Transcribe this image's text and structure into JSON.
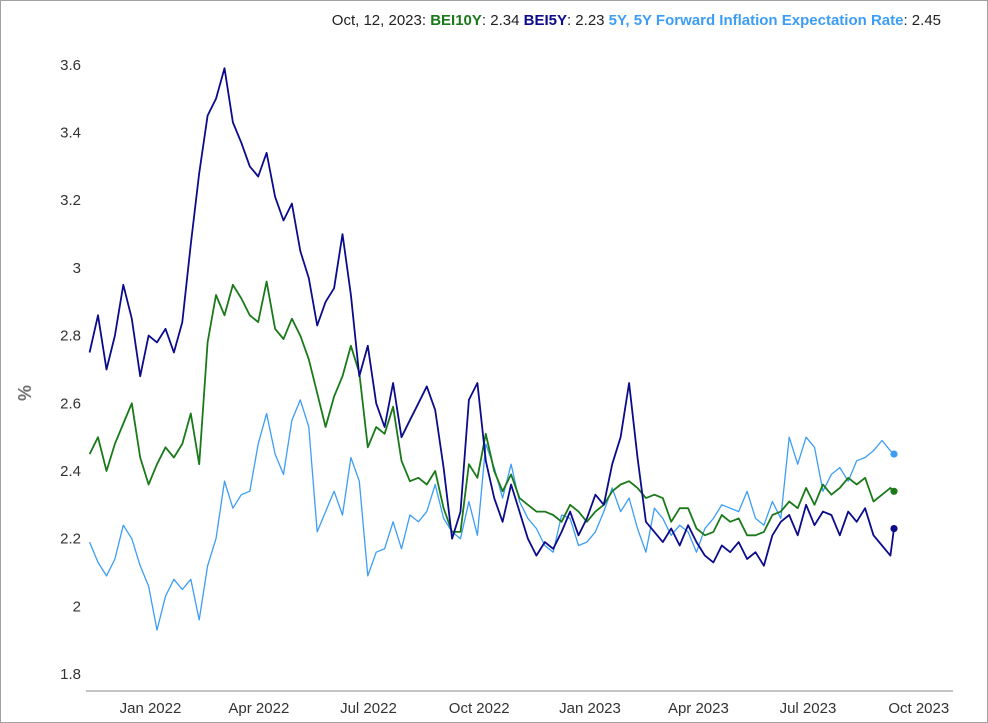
{
  "chart_data": {
    "type": "line",
    "header": {
      "date": "Oct, 12, 2023:",
      "values": [
        {
          "label": "BEI10Y",
          "value": "2.34",
          "color": "#1a7a1a"
        },
        {
          "label": "BEI5Y",
          "value": "2.23",
          "color": "#0b0b8c"
        },
        {
          "label": "5Y, 5Y Forward Inflation Expectation Rate",
          "value": "2.45",
          "color": "#3d9df5"
        }
      ]
    },
    "ylabel": "%",
    "ylim": [
      1.75,
      3.7
    ],
    "yticks": [
      1.8,
      2,
      2.2,
      2.4,
      2.6,
      2.8,
      3,
      3.2,
      3.4,
      3.6
    ],
    "ytick_labels": [
      "1.8",
      "2",
      "2.2",
      "2.4",
      "2.6",
      "2.8",
      "3",
      "3.2",
      "3.4",
      "3.6"
    ],
    "xlim": [
      "2021-12-10",
      "2023-11-30"
    ],
    "xticks": [
      "2022-01-01",
      "2022-04-01",
      "2022-07-01",
      "2022-10-01",
      "2023-01-01",
      "2023-04-01",
      "2023-07-01",
      "2023-10-01"
    ],
    "xtick_labels": [
      "Jan 2022",
      "Apr 2022",
      "Jul 2022",
      "Oct 2022",
      "Jan 2023",
      "Apr 2023",
      "Jul 2023",
      "Oct 2023"
    ],
    "grid": false,
    "series": [
      {
        "name": "5Y, 5Y Forward Inflation Expectation Rate",
        "color": "#3d9df5",
        "x": [
          "2021-12-13",
          "2021-12-20",
          "2021-12-27",
          "2022-01-03",
          "2022-01-10",
          "2022-01-17",
          "2022-01-24",
          "2022-01-31",
          "2022-02-07",
          "2022-02-14",
          "2022-02-21",
          "2022-02-28",
          "2022-03-07",
          "2022-03-14",
          "2022-03-21",
          "2022-03-28",
          "2022-04-04",
          "2022-04-11",
          "2022-04-18",
          "2022-04-25",
          "2022-05-02",
          "2022-05-09",
          "2022-05-16",
          "2022-05-23",
          "2022-05-30",
          "2022-06-06",
          "2022-06-13",
          "2022-06-20",
          "2022-06-27",
          "2022-07-04",
          "2022-07-11",
          "2022-07-18",
          "2022-07-25",
          "2022-08-01",
          "2022-08-08",
          "2022-08-15",
          "2022-08-22",
          "2022-08-29",
          "2022-09-05",
          "2022-09-12",
          "2022-09-19",
          "2022-09-26",
          "2022-10-03",
          "2022-10-10",
          "2022-10-17",
          "2022-10-24",
          "2022-10-31",
          "2022-11-07",
          "2022-11-14",
          "2022-11-21",
          "2022-11-28",
          "2022-12-05",
          "2022-12-12",
          "2022-12-19",
          "2022-12-26",
          "2023-01-02",
          "2023-01-09",
          "2023-01-16",
          "2023-01-23",
          "2023-01-30",
          "2023-02-06",
          "2023-02-13",
          "2023-02-20",
          "2023-02-27",
          "2023-03-06",
          "2023-03-13",
          "2023-03-20",
          "2023-03-27",
          "2023-04-03",
          "2023-04-10",
          "2023-04-17",
          "2023-04-24",
          "2023-05-01",
          "2023-05-08",
          "2023-05-15",
          "2023-05-22",
          "2023-05-29",
          "2023-06-05",
          "2023-06-12",
          "2023-06-19",
          "2023-06-26",
          "2023-07-03",
          "2023-07-10",
          "2023-07-17",
          "2023-07-24",
          "2023-07-31",
          "2023-08-07",
          "2023-08-14",
          "2023-08-21",
          "2023-08-28",
          "2023-09-04",
          "2023-09-11",
          "2023-09-18",
          "2023-09-25",
          "2023-10-02",
          "2023-10-09",
          "2023-10-12"
        ],
        "values": [
          2.19,
          2.13,
          2.09,
          2.14,
          2.24,
          2.2,
          2.12,
          2.06,
          1.93,
          2.03,
          2.08,
          2.05,
          2.08,
          1.96,
          2.12,
          2.2,
          2.37,
          2.29,
          2.33,
          2.34,
          2.48,
          2.57,
          2.45,
          2.39,
          2.55,
          2.61,
          2.53,
          2.22,
          2.28,
          2.34,
          2.27,
          2.44,
          2.37,
          2.09,
          2.16,
          2.17,
          2.25,
          2.17,
          2.27,
          2.25,
          2.28,
          2.36,
          2.26,
          2.22,
          2.2,
          2.31,
          2.21,
          2.48,
          2.41,
          2.32,
          2.42,
          2.31,
          2.26,
          2.23,
          2.18,
          2.16,
          2.27,
          2.26,
          2.18,
          2.19,
          2.22,
          2.28,
          2.35,
          2.28,
          2.32,
          2.23,
          2.16,
          2.29,
          2.26,
          2.21,
          2.24,
          2.22,
          2.16,
          2.23,
          2.26,
          2.3,
          2.29,
          2.28,
          2.34,
          2.26,
          2.24,
          2.31,
          2.26,
          2.5,
          2.42,
          2.5,
          2.47,
          2.34,
          2.39,
          2.41,
          2.37,
          2.43,
          2.44,
          2.46,
          2.49,
          2.46,
          2.45
        ]
      },
      {
        "name": "BEI10Y",
        "color": "#1a7a1a",
        "x": [
          "2021-12-13",
          "2021-12-20",
          "2021-12-27",
          "2022-01-03",
          "2022-01-10",
          "2022-01-17",
          "2022-01-24",
          "2022-01-31",
          "2022-02-07",
          "2022-02-14",
          "2022-02-21",
          "2022-02-28",
          "2022-03-07",
          "2022-03-14",
          "2022-03-21",
          "2022-03-28",
          "2022-04-04",
          "2022-04-11",
          "2022-04-18",
          "2022-04-25",
          "2022-05-02",
          "2022-05-09",
          "2022-05-16",
          "2022-05-23",
          "2022-05-30",
          "2022-06-06",
          "2022-06-13",
          "2022-06-20",
          "2022-06-27",
          "2022-07-04",
          "2022-07-11",
          "2022-07-18",
          "2022-07-25",
          "2022-08-01",
          "2022-08-08",
          "2022-08-15",
          "2022-08-22",
          "2022-08-29",
          "2022-09-05",
          "2022-09-12",
          "2022-09-19",
          "2022-09-26",
          "2022-10-03",
          "2022-10-10",
          "2022-10-17",
          "2022-10-24",
          "2022-10-31",
          "2022-11-07",
          "2022-11-14",
          "2022-11-21",
          "2022-11-28",
          "2022-12-05",
          "2022-12-12",
          "2022-12-19",
          "2022-12-26",
          "2023-01-02",
          "2023-01-09",
          "2023-01-16",
          "2023-01-23",
          "2023-01-30",
          "2023-02-06",
          "2023-02-13",
          "2023-02-20",
          "2023-02-27",
          "2023-03-06",
          "2023-03-13",
          "2023-03-20",
          "2023-03-27",
          "2023-04-03",
          "2023-04-10",
          "2023-04-17",
          "2023-04-24",
          "2023-05-01",
          "2023-05-08",
          "2023-05-15",
          "2023-05-22",
          "2023-05-29",
          "2023-06-05",
          "2023-06-12",
          "2023-06-19",
          "2023-06-26",
          "2023-07-03",
          "2023-07-10",
          "2023-07-17",
          "2023-07-24",
          "2023-07-31",
          "2023-08-07",
          "2023-08-14",
          "2023-08-21",
          "2023-08-28",
          "2023-09-04",
          "2023-09-11",
          "2023-09-18",
          "2023-09-25",
          "2023-10-02",
          "2023-10-09",
          "2023-10-12"
        ],
        "values": [
          2.45,
          2.5,
          2.4,
          2.48,
          2.54,
          2.6,
          2.44,
          2.36,
          2.42,
          2.47,
          2.44,
          2.48,
          2.57,
          2.42,
          2.78,
          2.92,
          2.86,
          2.95,
          2.91,
          2.86,
          2.84,
          2.96,
          2.82,
          2.79,
          2.85,
          2.8,
          2.73,
          2.63,
          2.53,
          2.62,
          2.68,
          2.77,
          2.69,
          2.47,
          2.53,
          2.51,
          2.59,
          2.43,
          2.37,
          2.38,
          2.36,
          2.4,
          2.29,
          2.22,
          2.22,
          2.42,
          2.38,
          2.51,
          2.4,
          2.34,
          2.39,
          2.32,
          2.3,
          2.28,
          2.28,
          2.27,
          2.25,
          2.3,
          2.28,
          2.25,
          2.28,
          2.3,
          2.34,
          2.36,
          2.37,
          2.35,
          2.32,
          2.33,
          2.32,
          2.25,
          2.29,
          2.29,
          2.23,
          2.21,
          2.22,
          2.27,
          2.25,
          2.26,
          2.21,
          2.21,
          2.22,
          2.27,
          2.28,
          2.31,
          2.29,
          2.35,
          2.3,
          2.36,
          2.33,
          2.35,
          2.38,
          2.36,
          2.38,
          2.31,
          2.33,
          2.35,
          2.34
        ]
      },
      {
        "name": "BEI5Y",
        "color": "#0b0b8c",
        "x": [
          "2021-12-13",
          "2021-12-20",
          "2021-12-27",
          "2022-01-03",
          "2022-01-10",
          "2022-01-17",
          "2022-01-24",
          "2022-01-31",
          "2022-02-07",
          "2022-02-14",
          "2022-02-21",
          "2022-02-28",
          "2022-03-07",
          "2022-03-14",
          "2022-03-21",
          "2022-03-28",
          "2022-04-04",
          "2022-04-11",
          "2022-04-18",
          "2022-04-25",
          "2022-05-02",
          "2022-05-09",
          "2022-05-16",
          "2022-05-23",
          "2022-05-30",
          "2022-06-06",
          "2022-06-13",
          "2022-06-20",
          "2022-06-27",
          "2022-07-04",
          "2022-07-11",
          "2022-07-18",
          "2022-07-25",
          "2022-08-01",
          "2022-08-08",
          "2022-08-15",
          "2022-08-22",
          "2022-08-29",
          "2022-09-05",
          "2022-09-12",
          "2022-09-19",
          "2022-09-26",
          "2022-10-03",
          "2022-10-10",
          "2022-10-17",
          "2022-10-24",
          "2022-10-31",
          "2022-11-07",
          "2022-11-14",
          "2022-11-21",
          "2022-11-28",
          "2022-12-05",
          "2022-12-12",
          "2022-12-19",
          "2022-12-26",
          "2023-01-02",
          "2023-01-09",
          "2023-01-16",
          "2023-01-23",
          "2023-01-30",
          "2023-02-06",
          "2023-02-13",
          "2023-02-20",
          "2023-02-27",
          "2023-03-06",
          "2023-03-13",
          "2023-03-20",
          "2023-03-27",
          "2023-04-03",
          "2023-04-10",
          "2023-04-17",
          "2023-04-24",
          "2023-05-01",
          "2023-05-08",
          "2023-05-15",
          "2023-05-22",
          "2023-05-29",
          "2023-06-05",
          "2023-06-12",
          "2023-06-19",
          "2023-06-26",
          "2023-07-03",
          "2023-07-10",
          "2023-07-17",
          "2023-07-24",
          "2023-07-31",
          "2023-08-07",
          "2023-08-14",
          "2023-08-21",
          "2023-08-28",
          "2023-09-04",
          "2023-09-11",
          "2023-09-18",
          "2023-09-25",
          "2023-10-02",
          "2023-10-09",
          "2023-10-12"
        ],
        "values": [
          2.75,
          2.86,
          2.7,
          2.8,
          2.95,
          2.85,
          2.68,
          2.8,
          2.78,
          2.82,
          2.75,
          2.84,
          3.07,
          3.28,
          3.45,
          3.5,
          3.59,
          3.43,
          3.37,
          3.3,
          3.27,
          3.34,
          3.21,
          3.14,
          3.19,
          3.05,
          2.97,
          2.83,
          2.9,
          2.94,
          3.1,
          2.92,
          2.68,
          2.77,
          2.6,
          2.53,
          2.66,
          2.5,
          2.55,
          2.6,
          2.65,
          2.58,
          2.41,
          2.2,
          2.28,
          2.61,
          2.66,
          2.43,
          2.32,
          2.25,
          2.36,
          2.28,
          2.2,
          2.15,
          2.19,
          2.17,
          2.22,
          2.28,
          2.21,
          2.26,
          2.33,
          2.3,
          2.42,
          2.5,
          2.66,
          2.44,
          2.25,
          2.22,
          2.19,
          2.23,
          2.18,
          2.24,
          2.19,
          2.15,
          2.13,
          2.18,
          2.16,
          2.19,
          2.14,
          2.16,
          2.12,
          2.21,
          2.25,
          2.27,
          2.21,
          2.3,
          2.24,
          2.28,
          2.27,
          2.21,
          2.28,
          2.25,
          2.29,
          2.21,
          2.18,
          2.15,
          2.23
        ]
      }
    ],
    "end_markers": [
      {
        "x": "2023-10-12",
        "value": 2.45,
        "color": "#3d9df5"
      },
      {
        "x": "2023-10-12",
        "value": 2.34,
        "color": "#1a7a1a"
      },
      {
        "x": "2023-10-12",
        "value": 2.23,
        "color": "#0b0b8c"
      }
    ]
  }
}
